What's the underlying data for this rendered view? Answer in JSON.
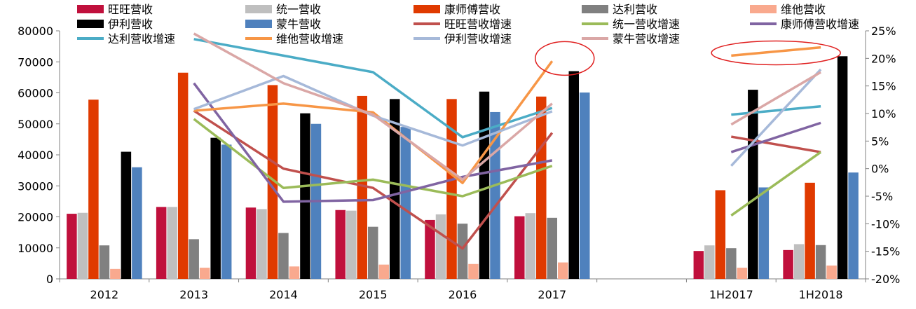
{
  "chart_data": {
    "type": "bar+line",
    "categories": [
      "2012",
      "2013",
      "2014",
      "2015",
      "2016",
      "2017",
      "",
      "1H2017",
      "1H2018"
    ],
    "y_left": {
      "min": 0,
      "max": 80000,
      "ticks": [
        "0",
        "10000",
        "20000",
        "30000",
        "40000",
        "50000",
        "60000",
        "70000",
        "80000"
      ]
    },
    "y_right": {
      "min": -20,
      "max": 25,
      "ticks": [
        "-20%",
        "-15%",
        "-10%",
        "-5%",
        "0%",
        "5%",
        "10%",
        "15%",
        "20%",
        "25%"
      ]
    },
    "bar_series": [
      {
        "name": "旺旺营收",
        "color": "#C0103C",
        "values": [
          21000,
          23200,
          23000,
          22200,
          19000,
          20200,
          null,
          9000,
          9300
        ]
      },
      {
        "name": "统一营收",
        "color": "#BFBFBF",
        "values": [
          21300,
          23200,
          22500,
          22000,
          20800,
          21200,
          null,
          10800,
          11200
        ]
      },
      {
        "name": "康师傅营收",
        "color": "#E03A00",
        "values": [
          57800,
          66500,
          62500,
          59000,
          58000,
          58800,
          null,
          28600,
          31000
        ]
      },
      {
        "name": "达利营收",
        "color": "#808080",
        "values": [
          10800,
          12800,
          14800,
          16800,
          17800,
          19700,
          null,
          9900,
          10900
        ]
      },
      {
        "name": "维他营收",
        "color": "#F9A98E",
        "values": [
          3200,
          3600,
          4000,
          4600,
          4800,
          5300,
          null,
          3600,
          4300
        ]
      },
      {
        "name": "伊利营收",
        "color": "#000000",
        "values": [
          41000,
          45500,
          53400,
          58000,
          60400,
          67000,
          null,
          61000,
          71800
        ]
      },
      {
        "name": "蒙牛营收",
        "color": "#4F81BD",
        "values": [
          36000,
          43300,
          50000,
          49000,
          53800,
          60100,
          null,
          29500,
          34300
        ]
      }
    ],
    "line_series": [
      {
        "name": "旺旺营收增速",
        "color": "#C0504D",
        "values": [
          null,
          10.5,
          0,
          -3.5,
          -14.5,
          6.5,
          null,
          5.8,
          3
        ]
      },
      {
        "name": "统一营收增速",
        "color": "#9BBB59",
        "values": [
          null,
          9,
          -3.5,
          -2,
          -5,
          0.5,
          null,
          -8.5,
          3
        ]
      },
      {
        "name": "康师傅营收增速",
        "color": "#8064A2",
        "values": [
          null,
          15.5,
          -6,
          -5.7,
          -1.5,
          1.5,
          null,
          3,
          8.3
        ]
      },
      {
        "name": "达利营收增速",
        "color": "#4BACC6",
        "values": [
          null,
          23.5,
          20.5,
          17.5,
          5.7,
          11,
          null,
          9.8,
          11.3
        ]
      },
      {
        "name": "维他营收增速",
        "color": "#F79646",
        "values": [
          null,
          10.5,
          11.8,
          10.2,
          -2.6,
          19.5,
          null,
          20.5,
          22
        ]
      },
      {
        "name": "伊利营收增速",
        "color": "#A6B9D9",
        "values": [
          null,
          10.8,
          16.8,
          9.6,
          4.2,
          10.4,
          null,
          0.5,
          18
        ]
      },
      {
        "name": "蒙牛营收增速",
        "color": "#DAA7A6",
        "values": [
          null,
          24.5,
          15.5,
          9.8,
          -2,
          11.8,
          null,
          8,
          17.5
        ]
      }
    ],
    "legend": {
      "rows": [
        [
          "旺旺营收",
          "统一营收",
          "康师傅营收",
          "达利营收",
          "维他营收"
        ],
        [
          "伊利营收",
          "蒙牛营收",
          "旺旺营收增速",
          "统一营收增速",
          "康师傅营收增速"
        ],
        [
          "达利营收增速",
          "维他营收增速",
          "伊利营收增速",
          "蒙牛营收增速"
        ]
      ]
    },
    "annotations": [
      {
        "type": "ellipse",
        "color": "#E02020",
        "category": "2017",
        "value_right": 20
      },
      {
        "type": "ellipse",
        "color": "#E02020",
        "category": "1H2017-1H2018",
        "value_right": 21
      }
    ]
  }
}
